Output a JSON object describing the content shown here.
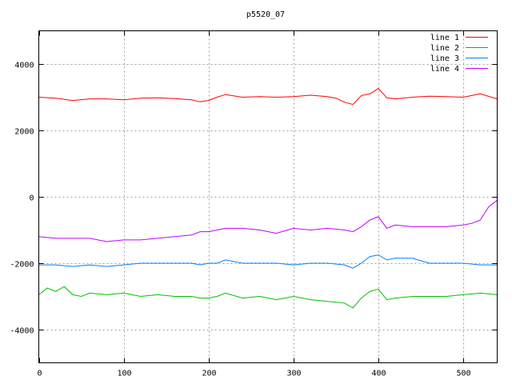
{
  "chart_data": {
    "type": "line",
    "title": "p5520_07",
    "xlabel": "",
    "ylabel": "",
    "xlim": [
      0,
      540
    ],
    "ylim": [
      -5000,
      5000
    ],
    "xticks": [
      0,
      100,
      200,
      300,
      400,
      500
    ],
    "yticks": [
      -4000,
      -2000,
      0,
      2000,
      4000
    ],
    "grid": true,
    "legend_position": "top-right",
    "series": [
      {
        "name": "line 1",
        "color": "#ff0000",
        "x": [
          0,
          20,
          40,
          60,
          80,
          100,
          120,
          140,
          160,
          180,
          190,
          200,
          210,
          220,
          240,
          260,
          280,
          300,
          320,
          340,
          350,
          360,
          370,
          380,
          390,
          400,
          410,
          420,
          440,
          460,
          480,
          500,
          520,
          540
        ],
        "y": [
          3000,
          2970,
          2900,
          2950,
          2950,
          2920,
          2970,
          2980,
          2960,
          2920,
          2860,
          2900,
          3000,
          3080,
          3000,
          3020,
          3000,
          3020,
          3060,
          3020,
          2970,
          2850,
          2780,
          3050,
          3100,
          3260,
          2980,
          2950,
          3000,
          3030,
          3020,
          3000,
          3100,
          2950
        ]
      },
      {
        "name": "line 2",
        "color": "#00c000",
        "x": [
          0,
          10,
          20,
          30,
          40,
          50,
          60,
          80,
          100,
          120,
          140,
          160,
          180,
          190,
          200,
          210,
          220,
          240,
          260,
          280,
          300,
          320,
          340,
          360,
          370,
          380,
          390,
          400,
          410,
          420,
          440,
          460,
          480,
          500,
          520,
          540
        ],
        "y": [
          -2950,
          -2750,
          -2850,
          -2700,
          -2950,
          -3000,
          -2900,
          -2950,
          -2900,
          -3000,
          -2950,
          -3000,
          -3000,
          -3050,
          -3050,
          -3000,
          -2900,
          -3050,
          -3000,
          -3100,
          -3000,
          -3100,
          -3150,
          -3200,
          -3350,
          -3050,
          -2850,
          -2780,
          -3100,
          -3050,
          -3000,
          -3000,
          -3000,
          -2950,
          -2900,
          -2950
        ]
      },
      {
        "name": "line 3",
        "color": "#0080ff",
        "x": [
          0,
          20,
          40,
          60,
          80,
          100,
          120,
          140,
          160,
          180,
          190,
          200,
          210,
          220,
          240,
          260,
          280,
          300,
          320,
          340,
          360,
          370,
          380,
          390,
          400,
          410,
          420,
          440,
          460,
          480,
          500,
          520,
          540
        ],
        "y": [
          -2050,
          -2050,
          -2100,
          -2050,
          -2100,
          -2050,
          -2000,
          -2000,
          -2000,
          -2000,
          -2050,
          -2000,
          -2000,
          -1900,
          -2000,
          -2000,
          -2000,
          -2050,
          -2000,
          -2000,
          -2050,
          -2150,
          -2000,
          -1800,
          -1750,
          -1900,
          -1850,
          -1850,
          -2000,
          -2000,
          -2000,
          -2050,
          -2050
        ]
      },
      {
        "name": "line 4",
        "color": "#c000ff",
        "x": [
          0,
          20,
          40,
          60,
          80,
          100,
          120,
          140,
          160,
          180,
          190,
          200,
          210,
          220,
          240,
          260,
          280,
          300,
          320,
          340,
          360,
          370,
          380,
          390,
          400,
          410,
          420,
          440,
          460,
          480,
          500,
          510,
          520,
          530,
          540
        ],
        "y": [
          -1200,
          -1250,
          -1250,
          -1250,
          -1350,
          -1300,
          -1300,
          -1250,
          -1200,
          -1150,
          -1050,
          -1050,
          -1000,
          -950,
          -950,
          -1000,
          -1100,
          -950,
          -1000,
          -950,
          -1000,
          -1050,
          -900,
          -700,
          -600,
          -950,
          -850,
          -900,
          -900,
          -900,
          -850,
          -800,
          -700,
          -300,
          -100
        ]
      }
    ]
  }
}
